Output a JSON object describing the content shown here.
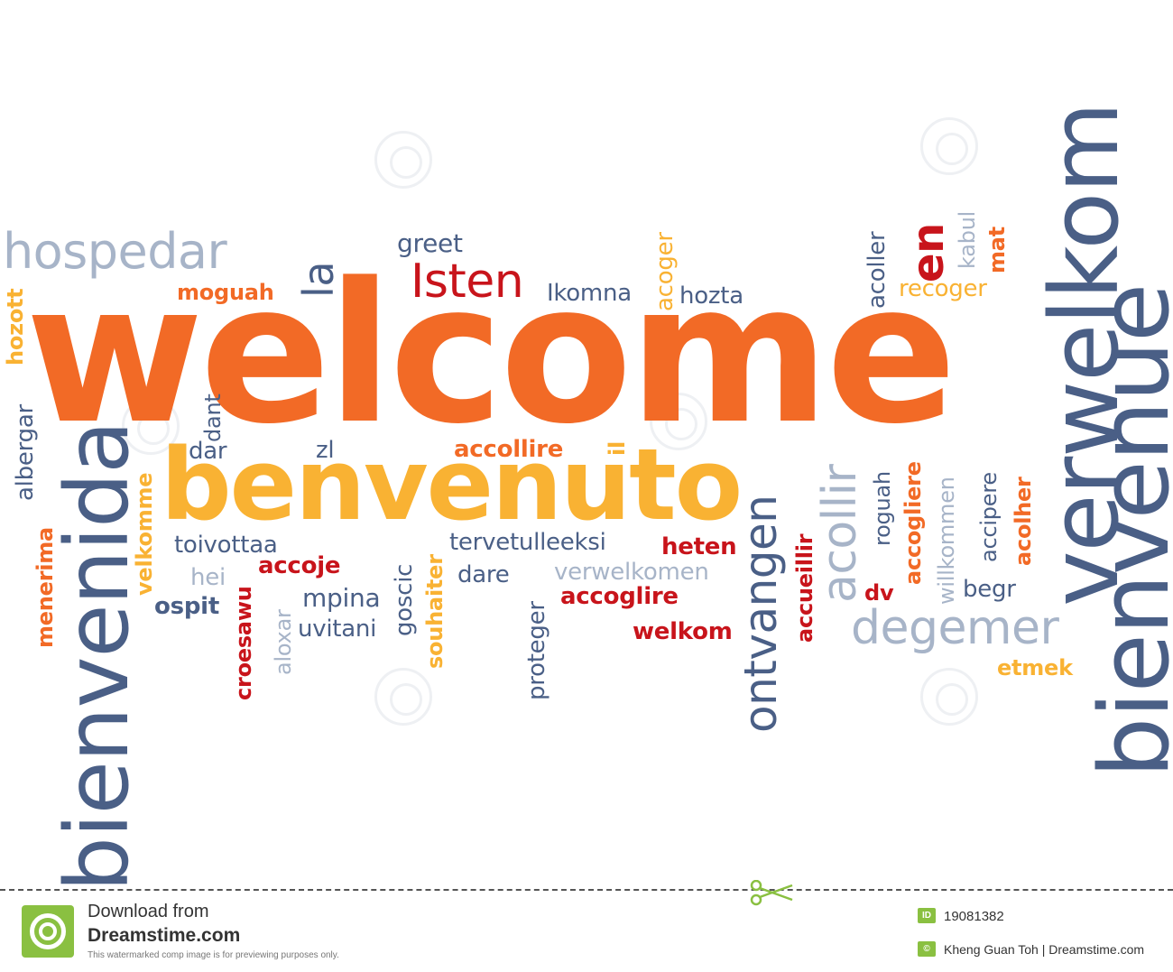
{
  "words": [
    {
      "text": "welcome",
      "color": "#f26a26"
    },
    {
      "text": "benvenuto",
      "color": "#f9b233"
    },
    {
      "text": "verwelkom",
      "color": "#4a5f86"
    },
    {
      "text": "bienvenue",
      "color": "#4a5f86"
    },
    {
      "text": "bienvenida",
      "color": "#4a5f86"
    },
    {
      "text": "hospedar",
      "color": "#a7b4c8"
    },
    {
      "text": "la",
      "color": "#4a5f86"
    },
    {
      "text": "moguah",
      "color": "#f26a26"
    },
    {
      "text": "greet",
      "color": "#4a5f86"
    },
    {
      "text": "Isten",
      "color": "#c8141b"
    },
    {
      "text": "Ikomna",
      "color": "#4a5f86"
    },
    {
      "text": "acoger",
      "color": "#f9b233"
    },
    {
      "text": "hozta",
      "color": "#4a5f86"
    },
    {
      "text": "en",
      "color": "#c8141b"
    },
    {
      "text": "acoller",
      "color": "#4a5f86"
    },
    {
      "text": "kabul",
      "color": "#a7b4c8"
    },
    {
      "text": "mat",
      "color": "#f26a26"
    },
    {
      "text": "recoger",
      "color": "#f9b233"
    },
    {
      "text": "hozott",
      "color": "#f9b233"
    },
    {
      "text": "albergar",
      "color": "#4a5f86"
    },
    {
      "text": "menerima",
      "color": "#f26a26"
    },
    {
      "text": "velkomme",
      "color": "#f9b233"
    },
    {
      "text": "dant",
      "color": "#4a5f86"
    },
    {
      "text": "dar",
      "color": "#4a5f86"
    },
    {
      "text": "zl",
      "color": "#4a5f86"
    },
    {
      "text": "accollire",
      "color": "#f26a26"
    },
    {
      "text": "il",
      "color": "#f9b233"
    },
    {
      "text": "ontvangen",
      "color": "#4a5f86"
    },
    {
      "text": "acollir",
      "color": "#a7b4c8"
    },
    {
      "text": "roguah",
      "color": "#4a5f86"
    },
    {
      "text": "accogliere",
      "color": "#f26a26"
    },
    {
      "text": "willkommen",
      "color": "#a7b4c8"
    },
    {
      "text": "accipere",
      "color": "#4a5f86"
    },
    {
      "text": "acolher",
      "color": "#f26a26"
    },
    {
      "text": "toivottaa",
      "color": "#4a5f86"
    },
    {
      "text": "hei",
      "color": "#a7b4c8"
    },
    {
      "text": "accoje",
      "color": "#c8141b"
    },
    {
      "text": "ospit",
      "color": "#4a5f86"
    },
    {
      "text": "croesawu",
      "color": "#c8141b"
    },
    {
      "text": "aloxar",
      "color": "#a7b4c8"
    },
    {
      "text": "mpina",
      "color": "#4a5f86"
    },
    {
      "text": "uvitani",
      "color": "#4a5f86"
    },
    {
      "text": "goscic",
      "color": "#4a5f86"
    },
    {
      "text": "souhaiter",
      "color": "#f9b233"
    },
    {
      "text": "tervetulleeksi",
      "color": "#4a5f86"
    },
    {
      "text": "dare",
      "color": "#4a5f86"
    },
    {
      "text": "verwelkomen",
      "color": "#a7b4c8"
    },
    {
      "text": "heten",
      "color": "#c8141b"
    },
    {
      "text": "accoglire",
      "color": "#c8141b"
    },
    {
      "text": "proteger",
      "color": "#4a5f86"
    },
    {
      "text": "welkom",
      "color": "#c8141b"
    },
    {
      "text": "accueillir",
      "color": "#c8141b"
    },
    {
      "text": "dv",
      "color": "#c8141b"
    },
    {
      "text": "degemer",
      "color": "#a7b4c8"
    },
    {
      "text": "begr",
      "color": "#4a5f86"
    },
    {
      "text": "etmek",
      "color": "#f9b233"
    }
  ],
  "footer": {
    "download_from": "Download from",
    "site": "Dreamstime.com",
    "note": "This watermarked comp image is for previewing purposes only.",
    "id_badge": "ID",
    "image_id": "19081382",
    "copyright_badge": "©",
    "credit": "Kheng Guan Toh | Dreamstime.com"
  }
}
